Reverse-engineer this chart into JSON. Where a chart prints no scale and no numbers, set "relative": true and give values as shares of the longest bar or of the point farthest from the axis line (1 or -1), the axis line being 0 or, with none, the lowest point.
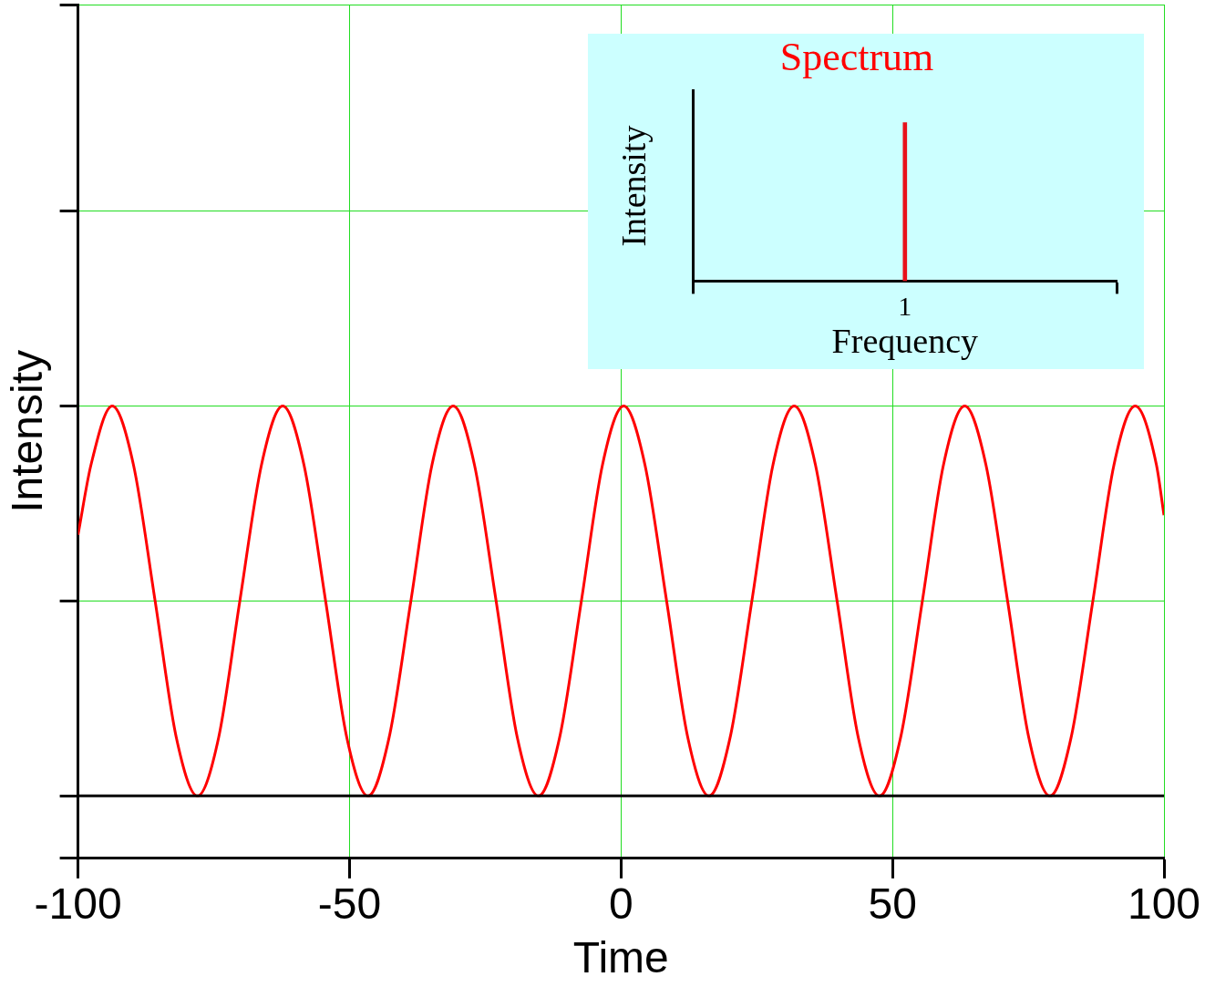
{
  "chart_data": [
    {
      "type": "line",
      "xlabel": "Time",
      "ylabel": "Intensity",
      "relative": true,
      "xlim": [
        -100,
        100
      ],
      "xticks": [
        -100,
        -50,
        0,
        50,
        100
      ],
      "grid": true,
      "marker": "none",
      "series": [
        {
          "color": "#ff0000",
          "x": [
            -100,
            -97.6,
            -93.7,
            -89.8,
            -85.8,
            -81.9,
            -78.0,
            -74.1,
            -70.2,
            -66.2,
            -62.3,
            -58.4,
            -54.4,
            -50.5,
            -46.6,
            -42.7,
            -38.7,
            -34.8,
            -30.9,
            -27.0,
            -23.0,
            -19.1,
            -15.2,
            -11.3,
            -7.3,
            -3.4,
            0.5,
            4.4,
            8.4,
            12.3,
            16.2,
            20.1,
            24.1,
            28.0,
            31.9,
            35.8,
            39.8,
            43.7,
            47.6,
            51.5,
            55.5,
            59.4,
            63.3,
            67.2,
            71.2,
            75.1,
            79.0,
            82.9,
            86.9,
            90.8,
            94.7,
            98.6,
            100
          ],
          "values": [
            0.67,
            0.85,
            1,
            0.85,
            0.5,
            0.15,
            0,
            0.15,
            0.5,
            0.85,
            1,
            0.85,
            0.5,
            0.15,
            0,
            0.15,
            0.5,
            0.85,
            1,
            0.85,
            0.5,
            0.15,
            0,
            0.15,
            0.5,
            0.85,
            1,
            0.85,
            0.5,
            0.15,
            0,
            0.15,
            0.5,
            0.85,
            1,
            0.85,
            0.5,
            0.15,
            0,
            0.15,
            0.5,
            0.85,
            1,
            0.85,
            0.5,
            0.15,
            0,
            0.15,
            0.5,
            0.85,
            1,
            0.85,
            0.72
          ]
        }
      ]
    },
    {
      "type": "bar",
      "title": "Spectrum",
      "xlabel": "Frequency",
      "ylabel": "Intensity",
      "relative": true,
      "categories": [
        "1"
      ],
      "grid": false,
      "series": [
        {
          "color": "#e8101a",
          "values": [
            1
          ]
        }
      ]
    }
  ]
}
